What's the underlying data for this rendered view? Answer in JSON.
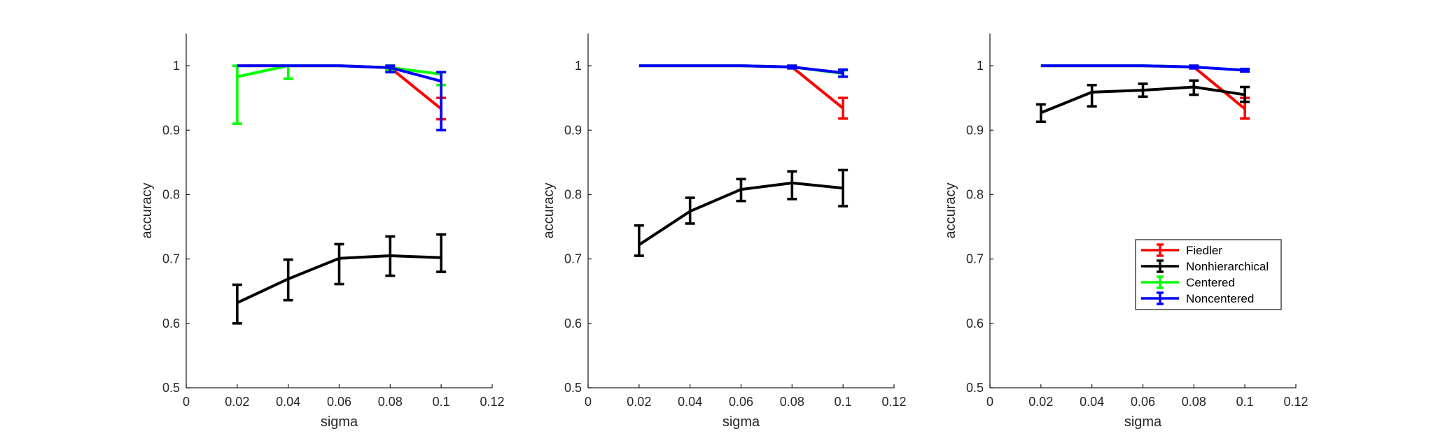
{
  "chart_data": [
    {
      "type": "line",
      "xlabel": "sigma",
      "ylabel": "accuracy",
      "xlim": [
        0,
        0.12
      ],
      "ylim": [
        0.5,
        1.05
      ],
      "xticks": [
        0,
        0.02,
        0.04,
        0.06,
        0.08,
        0.1,
        0.12
      ],
      "xtick_labels": [
        "0",
        "0.02",
        "0.04",
        "0.06",
        "0.08",
        "0.1",
        "0.12"
      ],
      "yticks": [
        0.5,
        0.6,
        0.7,
        0.8,
        0.9,
        1.0
      ],
      "ytick_labels": [
        "0.5",
        "0.6",
        "0.7",
        "0.8",
        "0.9",
        "1"
      ],
      "grid": false,
      "legend": false,
      "series": [
        {
          "name": "Fiedler",
          "color": "#ff0000",
          "x": [
            0.02,
            0.04,
            0.06,
            0.08,
            0.1
          ],
          "y": [
            1.0,
            1.0,
            1.0,
            0.997,
            0.933
          ],
          "lo": [
            1.0,
            1.0,
            1.0,
            0.994,
            0.917
          ],
          "hi": [
            1.0,
            1.0,
            1.0,
            1.0,
            0.95
          ]
        },
        {
          "name": "Nonhierarchical",
          "color": "#000000",
          "x": [
            0.02,
            0.04,
            0.06,
            0.08,
            0.1
          ],
          "y": [
            0.632,
            0.669,
            0.701,
            0.705,
            0.702
          ],
          "lo": [
            0.6,
            0.636,
            0.661,
            0.674,
            0.68
          ],
          "hi": [
            0.66,
            0.699,
            0.723,
            0.735,
            0.738
          ]
        },
        {
          "name": "Centered",
          "color": "#00ff00",
          "x": [
            0.02,
            0.04,
            0.06,
            0.08,
            0.1
          ],
          "y": [
            0.983,
            1.0,
            1.0,
            0.997,
            0.987
          ],
          "lo": [
            0.91,
            0.98,
            1.0,
            0.994,
            0.97
          ],
          "hi": [
            1.0,
            1.0,
            1.0,
            1.0,
            0.99
          ]
        },
        {
          "name": "Noncentered",
          "color": "#0000ff",
          "x": [
            0.02,
            0.04,
            0.06,
            0.08,
            0.1
          ],
          "y": [
            1.0,
            1.0,
            1.0,
            0.997,
            0.976
          ],
          "lo": [
            1.0,
            1.0,
            1.0,
            0.99,
            0.9
          ],
          "hi": [
            1.0,
            1.0,
            1.0,
            1.0,
            0.99
          ]
        }
      ]
    },
    {
      "type": "line",
      "xlabel": "sigma",
      "ylabel": "accuracy",
      "xlim": [
        0,
        0.12
      ],
      "ylim": [
        0.5,
        1.05
      ],
      "xticks": [
        0,
        0.02,
        0.04,
        0.06,
        0.08,
        0.1,
        0.12
      ],
      "xtick_labels": [
        "0",
        "0.02",
        "0.04",
        "0.06",
        "0.08",
        "0.1",
        "0.12"
      ],
      "yticks": [
        0.5,
        0.6,
        0.7,
        0.8,
        0.9,
        1.0
      ],
      "ytick_labels": [
        "0.5",
        "0.6",
        "0.7",
        "0.8",
        "0.9",
        "1"
      ],
      "grid": false,
      "legend": false,
      "series": [
        {
          "name": "Fiedler",
          "color": "#ff0000",
          "x": [
            0.02,
            0.04,
            0.06,
            0.08,
            0.1
          ],
          "y": [
            1.0,
            1.0,
            1.0,
            0.998,
            0.934
          ],
          "lo": [
            1.0,
            1.0,
            1.0,
            0.996,
            0.918
          ],
          "hi": [
            1.0,
            1.0,
            1.0,
            1.0,
            0.95
          ]
        },
        {
          "name": "Nonhierarchical",
          "color": "#000000",
          "x": [
            0.02,
            0.04,
            0.06,
            0.08,
            0.1
          ],
          "y": [
            0.722,
            0.774,
            0.808,
            0.818,
            0.81
          ],
          "lo": [
            0.705,
            0.755,
            0.79,
            0.793,
            0.782
          ],
          "hi": [
            0.752,
            0.795,
            0.824,
            0.836,
            0.838
          ]
        },
        {
          "name": "Centered",
          "color": "#00ff00",
          "x": [
            0.02,
            0.04,
            0.06,
            0.08,
            0.1
          ],
          "y": [
            1.0,
            1.0,
            1.0,
            0.998,
            0.988
          ],
          "lo": [
            1.0,
            1.0,
            1.0,
            0.996,
            0.983
          ],
          "hi": [
            1.0,
            1.0,
            1.0,
            1.0,
            0.993
          ]
        },
        {
          "name": "Noncentered",
          "color": "#0000ff",
          "x": [
            0.02,
            0.04,
            0.06,
            0.08,
            0.1
          ],
          "y": [
            1.0,
            1.0,
            1.0,
            0.998,
            0.989
          ],
          "lo": [
            1.0,
            1.0,
            1.0,
            0.996,
            0.983
          ],
          "hi": [
            1.0,
            1.0,
            1.0,
            1.0,
            0.994
          ]
        }
      ]
    },
    {
      "type": "line",
      "xlabel": "sigma",
      "ylabel": "accuracy",
      "xlim": [
        0,
        0.12
      ],
      "ylim": [
        0.5,
        1.05
      ],
      "xticks": [
        0,
        0.02,
        0.04,
        0.06,
        0.08,
        0.1,
        0.12
      ],
      "xtick_labels": [
        "0",
        "0.02",
        "0.04",
        "0.06",
        "0.08",
        "0.1",
        "0.12"
      ],
      "yticks": [
        0.5,
        0.6,
        0.7,
        0.8,
        0.9,
        1.0
      ],
      "ytick_labels": [
        "0.5",
        "0.6",
        "0.7",
        "0.8",
        "0.9",
        "1"
      ],
      "grid": false,
      "legend": true,
      "legend_position": "lower-right",
      "series": [
        {
          "name": "Fiedler",
          "color": "#ff0000",
          "x": [
            0.02,
            0.04,
            0.06,
            0.08,
            0.1
          ],
          "y": [
            1.0,
            1.0,
            1.0,
            0.998,
            0.933
          ],
          "lo": [
            1.0,
            1.0,
            1.0,
            0.996,
            0.918
          ],
          "hi": [
            1.0,
            1.0,
            1.0,
            1.0,
            0.95
          ]
        },
        {
          "name": "Nonhierarchical",
          "color": "#000000",
          "x": [
            0.02,
            0.04,
            0.06,
            0.08,
            0.1
          ],
          "y": [
            0.927,
            0.959,
            0.962,
            0.967,
            0.955
          ],
          "lo": [
            0.913,
            0.937,
            0.952,
            0.955,
            0.944
          ],
          "hi": [
            0.94,
            0.97,
            0.972,
            0.977,
            0.967
          ]
        },
        {
          "name": "Centered",
          "color": "#00ff00",
          "x": [
            0.02,
            0.04,
            0.06,
            0.08,
            0.1
          ],
          "y": [
            1.0,
            1.0,
            1.0,
            0.998,
            0.993
          ],
          "lo": [
            1.0,
            1.0,
            1.0,
            0.996,
            0.991
          ],
          "hi": [
            1.0,
            1.0,
            1.0,
            1.0,
            0.995
          ]
        },
        {
          "name": "Noncentered",
          "color": "#0000ff",
          "x": [
            0.02,
            0.04,
            0.06,
            0.08,
            0.1
          ],
          "y": [
            1.0,
            1.0,
            1.0,
            0.998,
            0.993
          ],
          "lo": [
            1.0,
            1.0,
            1.0,
            0.996,
            0.991
          ],
          "hi": [
            1.0,
            1.0,
            1.0,
            1.0,
            0.995
          ]
        }
      ]
    }
  ]
}
